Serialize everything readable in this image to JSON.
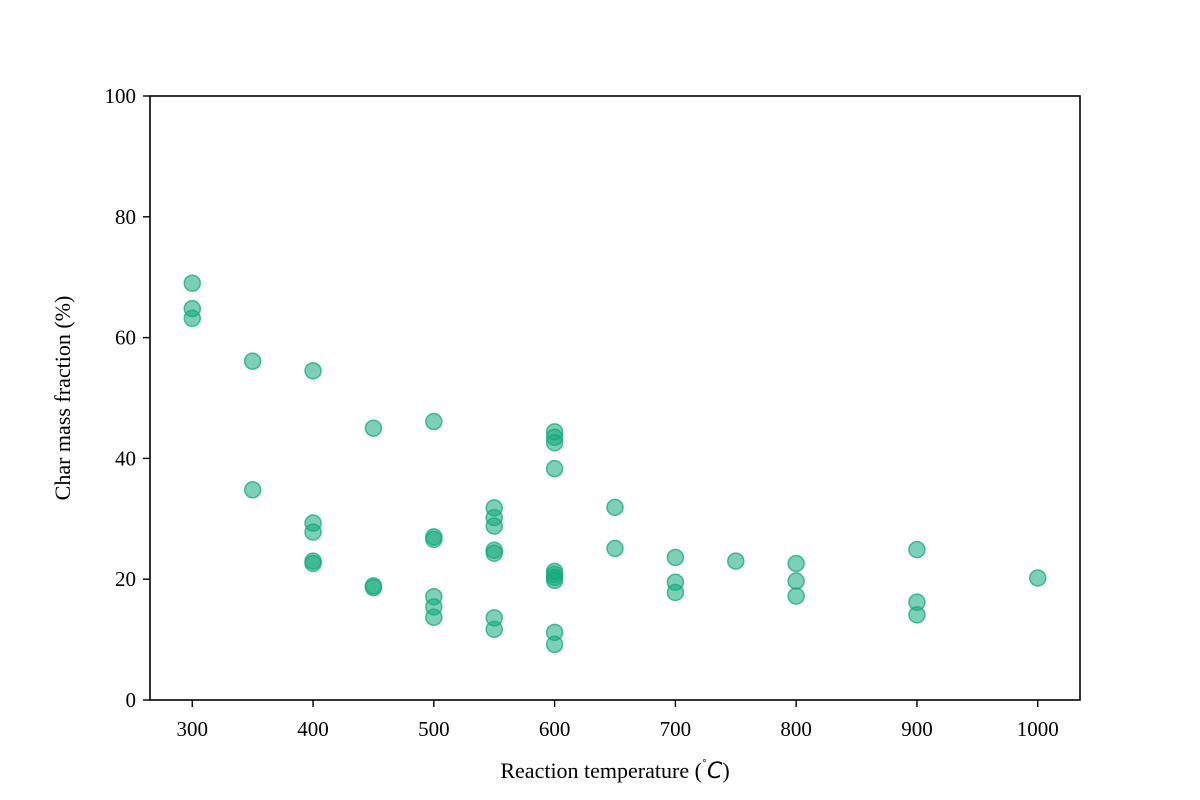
{
  "chart_data": {
    "type": "scatter",
    "title": "",
    "xlabel_text": "Reaction temperature (",
    "xlabel_unit": "˚",
    "xlabel_unit_italic": "C",
    "xlabel_close": ")",
    "ylabel": "Char mass fraction (%)",
    "xlim": [
      265,
      1035
    ],
    "ylim": [
      0,
      100
    ],
    "xticks": [
      300,
      400,
      500,
      600,
      700,
      800,
      900,
      1000
    ],
    "yticks": [
      0,
      20,
      40,
      60,
      80,
      100
    ],
    "grid": false,
    "legend": "none",
    "marker_color": "#12a97a",
    "points": [
      {
        "x": 300,
        "y": 69.0
      },
      {
        "x": 300,
        "y": 64.8
      },
      {
        "x": 300,
        "y": 63.2
      },
      {
        "x": 350,
        "y": 56.1
      },
      {
        "x": 350,
        "y": 34.8
      },
      {
        "x": 400,
        "y": 54.5
      },
      {
        "x": 400,
        "y": 29.3
      },
      {
        "x": 400,
        "y": 27.8
      },
      {
        "x": 400,
        "y": 23.0
      },
      {
        "x": 400,
        "y": 22.6
      },
      {
        "x": 450,
        "y": 45.0
      },
      {
        "x": 450,
        "y": 18.9
      },
      {
        "x": 450,
        "y": 18.6
      },
      {
        "x": 500,
        "y": 46.1
      },
      {
        "x": 500,
        "y": 27.0
      },
      {
        "x": 500,
        "y": 26.6
      },
      {
        "x": 500,
        "y": 17.1
      },
      {
        "x": 500,
        "y": 15.4
      },
      {
        "x": 500,
        "y": 13.7
      },
      {
        "x": 550,
        "y": 31.8
      },
      {
        "x": 550,
        "y": 30.2
      },
      {
        "x": 550,
        "y": 28.8
      },
      {
        "x": 550,
        "y": 24.8
      },
      {
        "x": 550,
        "y": 24.3
      },
      {
        "x": 550,
        "y": 13.6
      },
      {
        "x": 550,
        "y": 11.7
      },
      {
        "x": 600,
        "y": 44.4
      },
      {
        "x": 600,
        "y": 43.5
      },
      {
        "x": 600,
        "y": 42.6
      },
      {
        "x": 600,
        "y": 38.3
      },
      {
        "x": 600,
        "y": 21.3
      },
      {
        "x": 600,
        "y": 20.8
      },
      {
        "x": 600,
        "y": 20.3
      },
      {
        "x": 600,
        "y": 19.8
      },
      {
        "x": 600,
        "y": 11.2
      },
      {
        "x": 600,
        "y": 9.2
      },
      {
        "x": 650,
        "y": 31.9
      },
      {
        "x": 650,
        "y": 25.1
      },
      {
        "x": 700,
        "y": 23.6
      },
      {
        "x": 700,
        "y": 19.5
      },
      {
        "x": 700,
        "y": 17.8
      },
      {
        "x": 750,
        "y": 23.0
      },
      {
        "x": 800,
        "y": 22.6
      },
      {
        "x": 800,
        "y": 19.7
      },
      {
        "x": 800,
        "y": 17.2
      },
      {
        "x": 900,
        "y": 24.9
      },
      {
        "x": 900,
        "y": 16.2
      },
      {
        "x": 900,
        "y": 14.1
      },
      {
        "x": 1000,
        "y": 20.2
      }
    ]
  }
}
